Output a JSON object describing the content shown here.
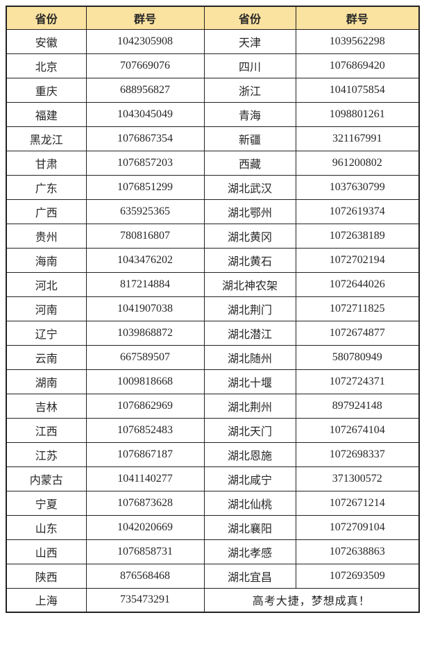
{
  "colors": {
    "header_bg": "#FAE2A0",
    "border": "#212121",
    "text": "#262626",
    "page_bg": "#FFFFFF"
  },
  "table": {
    "headers": [
      "省份",
      "群号",
      "省份",
      "群号"
    ],
    "rows": [
      [
        "安徽",
        "1042305908",
        "天津",
        "1039562298"
      ],
      [
        "北京",
        "707669076",
        "四川",
        "1076869420"
      ],
      [
        "重庆",
        "688956827",
        "浙江",
        "1041075854"
      ],
      [
        "福建",
        "1043045049",
        "青海",
        "1098801261"
      ],
      [
        "黑龙江",
        "1076867354",
        "新疆",
        "321167991"
      ],
      [
        "甘肃",
        "1076857203",
        "西藏",
        "961200802"
      ],
      [
        "广东",
        "1076851299",
        "湖北武汉",
        "1037630799"
      ],
      [
        "广西",
        "635925365",
        "湖北鄂州",
        "1072619374"
      ],
      [
        "贵州",
        "780816807",
        "湖北黄冈",
        "1072638189"
      ],
      [
        "海南",
        "1043476202",
        "湖北黄石",
        "1072702194"
      ],
      [
        "河北",
        "817214884",
        "湖北神农架",
        "1072644026"
      ],
      [
        "河南",
        "1041907038",
        "湖北荆门",
        "1072711825"
      ],
      [
        "辽宁",
        "1039868872",
        "湖北潜江",
        "1072674877"
      ],
      [
        "云南",
        "667589507",
        "湖北随州",
        "580780949"
      ],
      [
        "湖南",
        "1009818668",
        "湖北十堰",
        "1072724371"
      ],
      [
        "吉林",
        "1076862969",
        "湖北荆州",
        "897924148"
      ],
      [
        "江西",
        "1076852483",
        "湖北天门",
        "1072674104"
      ],
      [
        "江苏",
        "1076867187",
        "湖北恩施",
        "1072698337"
      ],
      [
        "内蒙古",
        "1041140277",
        "湖北咸宁",
        "371300572"
      ],
      [
        "宁夏",
        "1076873628",
        "湖北仙桃",
        "1072671214"
      ],
      [
        "山东",
        "1042020669",
        "湖北襄阳",
        "1072709104"
      ],
      [
        "山西",
        "1076858731",
        "湖北孝感",
        "1072638863"
      ],
      [
        "陕西",
        "876568468",
        "湖北宜昌",
        "1072693509"
      ]
    ],
    "final_row": {
      "province": "上海",
      "group_number": "735473291",
      "slogan": "高考大捷，梦想成真！"
    }
  }
}
